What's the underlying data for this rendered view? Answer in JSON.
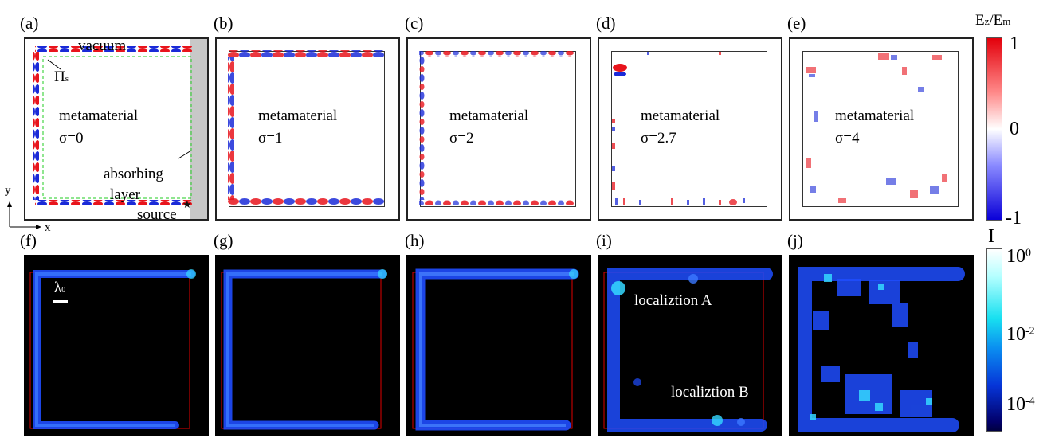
{
  "panel_labels": [
    "(a)",
    "(b)",
    "(c)",
    "(d)",
    "(e)",
    "(f)",
    "(g)",
    "(h)",
    "(i)",
    "(j)"
  ],
  "annotations": {
    "vacuum": "vacuum",
    "pi_s": "Π",
    "pi_s_sub": "s",
    "metamaterial": "metamaterial",
    "sigma_a": "σ=0",
    "sigma_b": "σ=1",
    "sigma_c": "σ=2",
    "sigma_d": "σ=2.7",
    "sigma_e": "σ=4",
    "absorbing": "absorbing",
    "layer": "layer",
    "source": "source",
    "axis_y": "y",
    "axis_x": "x",
    "lambda": "λ",
    "lambda_sub": "0",
    "loc_a": "localiztion A",
    "loc_b": "localiztion B"
  },
  "colorbar_top": {
    "title_main": "E",
    "title_sub1": "z",
    "title_mid": "/E",
    "title_sub2": "m",
    "ticks": [
      "1",
      "0",
      "-1"
    ]
  },
  "colorbar_bottom": {
    "title": "I",
    "ticks": [
      {
        "base": "10",
        "exp": "0"
      },
      {
        "base": "10",
        "exp": "-2"
      },
      {
        "base": "10",
        "exp": "-4"
      }
    ]
  },
  "colors": {
    "field_red": "#e8141c",
    "field_blue": "#1a2ad8",
    "intensity_blue": "#1f4dff",
    "intensity_cyan": "#35d8ff",
    "source_line": "#e00000",
    "guide_green": "#22cc22",
    "absorber_gray": "#c8c8c8"
  }
}
